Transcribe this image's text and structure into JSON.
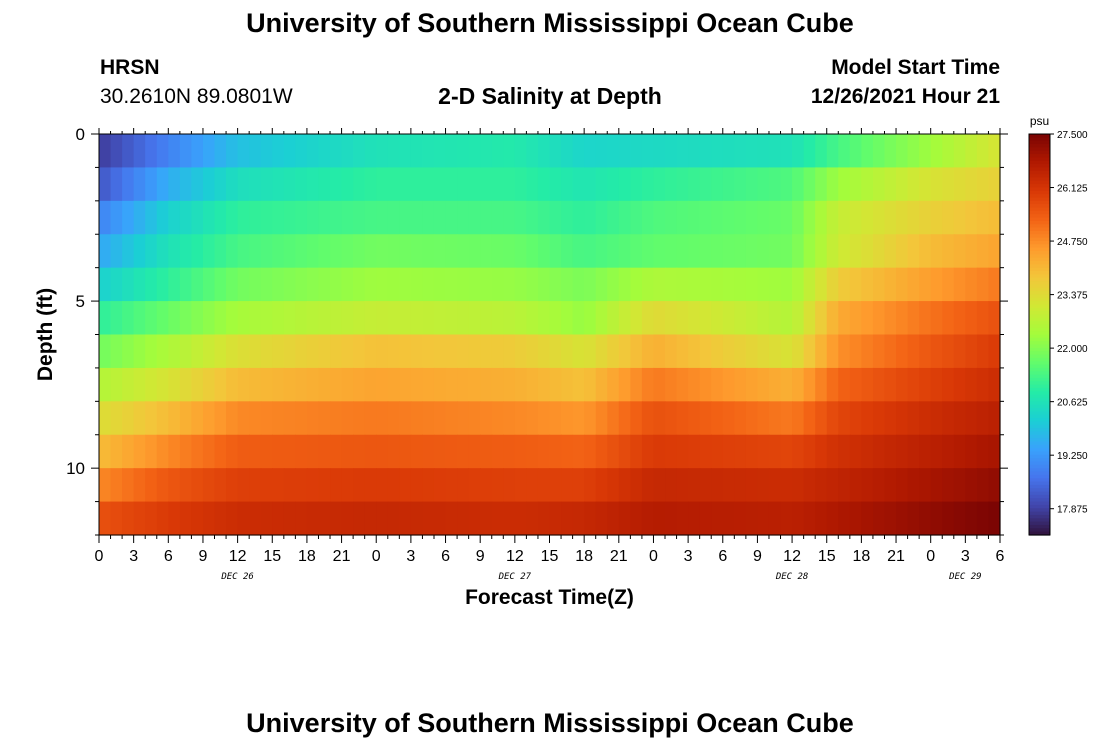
{
  "header": {
    "title": "University of Southern Mississippi Ocean Cube",
    "station_id": "HRSN",
    "station_coords": "30.2610N  89.0801W",
    "plot_title": "2-D Salinity at Depth",
    "model_start_label": "Model Start Time",
    "model_start_value": "12/26/2021 Hour 21"
  },
  "footer": {
    "title": "University of Southern Mississippi Ocean Cube"
  },
  "chart_data": {
    "type": "heatmap",
    "xlabel": "Forecast Time(Z)",
    "ylabel": "Depth (ft)",
    "y_ticks": [
      0,
      5,
      10
    ],
    "ylim": [
      0,
      12
    ],
    "x_tick_labels": [
      "0",
      "3",
      "6",
      "9",
      "12",
      "15",
      "18",
      "21",
      "0",
      "3",
      "6",
      "9",
      "12",
      "15",
      "18",
      "21",
      "0",
      "3",
      "6",
      "9",
      "12",
      "15",
      "18",
      "21",
      "0",
      "3",
      "6"
    ],
    "day_labels": [
      {
        "label": "DEC 26",
        "hour_index": 12
      },
      {
        "label": "DEC 27",
        "hour_index": 36
      },
      {
        "label": "DEC 28",
        "hour_index": 60
      },
      {
        "label": "DEC 29",
        "hour_index": 75
      }
    ],
    "x_hours": 78,
    "depth_layers": 12,
    "colorbar": {
      "unit": "psu",
      "min": 17.2,
      "max": 27.5,
      "tick_labels": [
        "27.500",
        "26.125",
        "24.750",
        "23.375",
        "22.000",
        "20.625",
        "19.250",
        "17.875"
      ],
      "tick_values": [
        27.5,
        26.125,
        24.75,
        23.375,
        22.0,
        20.625,
        19.25,
        17.875
      ]
    },
    "colors": [
      "#30123b",
      "#4145ab",
      "#4675ed",
      "#39a2fc",
      "#1bcfd4",
      "#24eca6",
      "#61fc6c",
      "#a4fc3b",
      "#d1e834",
      "#f3c63a",
      "#fe9b2d",
      "#f36315",
      "#d93806",
      "#b11901",
      "#7a0403"
    ],
    "salinity_grid": [
      [
        {
          "h": 0,
          "v": 17.8
        },
        {
          "h": 6,
          "v": 18.9
        },
        {
          "h": 12,
          "v": 19.9
        },
        {
          "h": 24,
          "v": 20.6
        },
        {
          "h": 36,
          "v": 20.8
        },
        {
          "h": 42,
          "v": 20.3
        },
        {
          "h": 48,
          "v": 20.4
        },
        {
          "h": 60,
          "v": 20.6
        },
        {
          "h": 64,
          "v": 21.3
        },
        {
          "h": 72,
          "v": 22.3
        },
        {
          "h": 78,
          "v": 23.2
        }
      ],
      [
        {
          "h": 0,
          "v": 18.2
        },
        {
          "h": 6,
          "v": 19.6
        },
        {
          "h": 12,
          "v": 20.5
        },
        {
          "h": 24,
          "v": 21.0
        },
        {
          "h": 36,
          "v": 21.0
        },
        {
          "h": 42,
          "v": 20.7
        },
        {
          "h": 48,
          "v": 21.0
        },
        {
          "h": 60,
          "v": 21.4
        },
        {
          "h": 64,
          "v": 22.3
        },
        {
          "h": 72,
          "v": 23.2
        },
        {
          "h": 78,
          "v": 23.6
        }
      ],
      [
        {
          "h": 0,
          "v": 18.9
        },
        {
          "h": 6,
          "v": 20.2
        },
        {
          "h": 12,
          "v": 21.0
        },
        {
          "h": 24,
          "v": 21.3
        },
        {
          "h": 36,
          "v": 21.3
        },
        {
          "h": 42,
          "v": 21.0
        },
        {
          "h": 48,
          "v": 21.4
        },
        {
          "h": 60,
          "v": 21.7
        },
        {
          "h": 64,
          "v": 22.9
        },
        {
          "h": 72,
          "v": 23.6
        },
        {
          "h": 78,
          "v": 24.0
        }
      ],
      [
        {
          "h": 0,
          "v": 19.5
        },
        {
          "h": 6,
          "v": 20.6
        },
        {
          "h": 12,
          "v": 21.3
        },
        {
          "h": 24,
          "v": 21.8
        },
        {
          "h": 36,
          "v": 21.7
        },
        {
          "h": 42,
          "v": 21.3
        },
        {
          "h": 48,
          "v": 21.6
        },
        {
          "h": 60,
          "v": 21.8
        },
        {
          "h": 64,
          "v": 23.0
        },
        {
          "h": 72,
          "v": 24.0
        },
        {
          "h": 78,
          "v": 24.4
        }
      ],
      [
        {
          "h": 0,
          "v": 20.2
        },
        {
          "h": 6,
          "v": 21.0
        },
        {
          "h": 12,
          "v": 21.8
        },
        {
          "h": 24,
          "v": 22.3
        },
        {
          "h": 36,
          "v": 22.2
        },
        {
          "h": 42,
          "v": 21.9
        },
        {
          "h": 48,
          "v": 22.5
        },
        {
          "h": 60,
          "v": 22.3
        },
        {
          "h": 64,
          "v": 23.7
        },
        {
          "h": 72,
          "v": 24.5
        },
        {
          "h": 78,
          "v": 25.0
        }
      ],
      [
        {
          "h": 0,
          "v": 21.0
        },
        {
          "h": 6,
          "v": 21.7
        },
        {
          "h": 12,
          "v": 22.4
        },
        {
          "h": 24,
          "v": 22.9
        },
        {
          "h": 36,
          "v": 22.7
        },
        {
          "h": 42,
          "v": 22.2
        },
        {
          "h": 48,
          "v": 23.4
        },
        {
          "h": 60,
          "v": 22.6
        },
        {
          "h": 64,
          "v": 24.3
        },
        {
          "h": 72,
          "v": 25.1
        },
        {
          "h": 78,
          "v": 25.6
        }
      ],
      [
        {
          "h": 0,
          "v": 21.8
        },
        {
          "h": 6,
          "v": 22.5
        },
        {
          "h": 12,
          "v": 23.3
        },
        {
          "h": 24,
          "v": 23.9
        },
        {
          "h": 36,
          "v": 23.7
        },
        {
          "h": 42,
          "v": 23.2
        },
        {
          "h": 48,
          "v": 24.2
        },
        {
          "h": 60,
          "v": 23.2
        },
        {
          "h": 64,
          "v": 24.7
        },
        {
          "h": 72,
          "v": 25.5
        },
        {
          "h": 78,
          "v": 26.0
        }
      ],
      [
        {
          "h": 0,
          "v": 22.6
        },
        {
          "h": 6,
          "v": 23.2
        },
        {
          "h": 12,
          "v": 24.0
        },
        {
          "h": 24,
          "v": 24.4
        },
        {
          "h": 36,
          "v": 24.2
        },
        {
          "h": 42,
          "v": 23.9
        },
        {
          "h": 48,
          "v": 25.0
        },
        {
          "h": 60,
          "v": 24.2
        },
        {
          "h": 64,
          "v": 25.3
        },
        {
          "h": 72,
          "v": 25.9
        },
        {
          "h": 78,
          "v": 26.3
        }
      ],
      [
        {
          "h": 0,
          "v": 23.3
        },
        {
          "h": 6,
          "v": 24.0
        },
        {
          "h": 12,
          "v": 24.8
        },
        {
          "h": 24,
          "v": 25.0
        },
        {
          "h": 36,
          "v": 24.8
        },
        {
          "h": 42,
          "v": 24.6
        },
        {
          "h": 48,
          "v": 25.6
        },
        {
          "h": 60,
          "v": 25.0
        },
        {
          "h": 64,
          "v": 25.8
        },
        {
          "h": 72,
          "v": 26.3
        },
        {
          "h": 78,
          "v": 26.6
        }
      ],
      [
        {
          "h": 0,
          "v": 24.0
        },
        {
          "h": 6,
          "v": 24.8
        },
        {
          "h": 12,
          "v": 25.4
        },
        {
          "h": 24,
          "v": 25.5
        },
        {
          "h": 36,
          "v": 25.4
        },
        {
          "h": 42,
          "v": 25.3
        },
        {
          "h": 48,
          "v": 26.0
        },
        {
          "h": 60,
          "v": 25.8
        },
        {
          "h": 64,
          "v": 26.2
        },
        {
          "h": 72,
          "v": 26.6
        },
        {
          "h": 78,
          "v": 26.9
        }
      ],
      [
        {
          "h": 0,
          "v": 24.8
        },
        {
          "h": 6,
          "v": 25.5
        },
        {
          "h": 12,
          "v": 25.9
        },
        {
          "h": 24,
          "v": 26.0
        },
        {
          "h": 36,
          "v": 25.9
        },
        {
          "h": 42,
          "v": 25.9
        },
        {
          "h": 48,
          "v": 26.4
        },
        {
          "h": 60,
          "v": 26.3
        },
        {
          "h": 64,
          "v": 26.5
        },
        {
          "h": 72,
          "v": 26.9
        },
        {
          "h": 78,
          "v": 27.2
        }
      ],
      [
        {
          "h": 0,
          "v": 25.6
        },
        {
          "h": 6,
          "v": 26.0
        },
        {
          "h": 12,
          "v": 26.3
        },
        {
          "h": 24,
          "v": 26.4
        },
        {
          "h": 36,
          "v": 26.3
        },
        {
          "h": 42,
          "v": 26.4
        },
        {
          "h": 48,
          "v": 26.7
        },
        {
          "h": 60,
          "v": 26.6
        },
        {
          "h": 64,
          "v": 26.8
        },
        {
          "h": 72,
          "v": 27.2
        },
        {
          "h": 78,
          "v": 27.5
        }
      ]
    ]
  }
}
